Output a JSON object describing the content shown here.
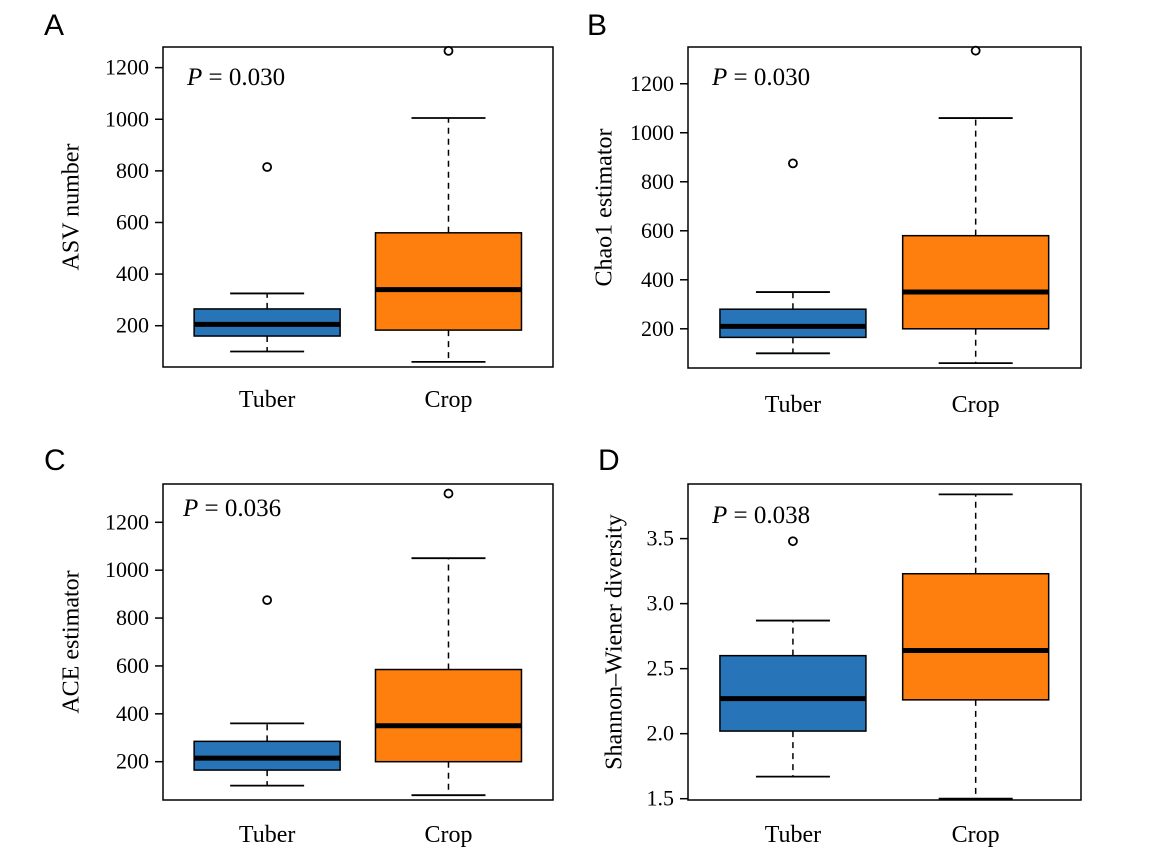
{
  "chart_data": [
    {
      "type": "box",
      "panel": "A",
      "ylabel": "ASV number",
      "annotation_label": "P",
      "annotation_value": " = 0.030",
      "categories": [
        "Tuber",
        "Crop"
      ],
      "yticks": [
        200,
        400,
        600,
        800,
        1000,
        1200
      ],
      "ylim": [
        40,
        1280
      ],
      "boxes": [
        {
          "category": "Tuber",
          "color": "#2874b8",
          "whisker_low": 100,
          "q1": 160,
          "median": 205,
          "q3": 265,
          "whisker_high": 325,
          "outliers": [
            815
          ]
        },
        {
          "category": "Crop",
          "color": "#ff7f0e",
          "whisker_low": 60,
          "q1": 183,
          "median": 340,
          "q3": 560,
          "whisker_high": 1005,
          "outliers": [
            1265
          ]
        }
      ]
    },
    {
      "type": "box",
      "panel": "B",
      "ylabel": "Chao1 estimator",
      "annotation_label": "P",
      "annotation_value": " = 0.030",
      "categories": [
        "Tuber",
        "Crop"
      ],
      "yticks": [
        200,
        400,
        600,
        800,
        1000,
        1200
      ],
      "ylim": [
        40,
        1350
      ],
      "boxes": [
        {
          "category": "Tuber",
          "color": "#2874b8",
          "whisker_low": 100,
          "q1": 165,
          "median": 210,
          "q3": 280,
          "whisker_high": 350,
          "outliers": [
            875
          ]
        },
        {
          "category": "Crop",
          "color": "#ff7f0e",
          "whisker_low": 60,
          "q1": 200,
          "median": 350,
          "q3": 580,
          "whisker_high": 1060,
          "outliers": [
            1335
          ]
        }
      ]
    },
    {
      "type": "box",
      "panel": "C",
      "ylabel": "ACE estimator",
      "annotation_label": "P",
      "annotation_value": " = 0.036",
      "categories": [
        "Tuber",
        "Crop"
      ],
      "yticks": [
        200,
        400,
        600,
        800,
        1000,
        1200
      ],
      "ylim": [
        40,
        1360
      ],
      "boxes": [
        {
          "category": "Tuber",
          "color": "#2874b8",
          "whisker_low": 100,
          "q1": 165,
          "median": 215,
          "q3": 285,
          "whisker_high": 360,
          "outliers": [
            875
          ]
        },
        {
          "category": "Crop",
          "color": "#ff7f0e",
          "whisker_low": 60,
          "q1": 200,
          "median": 350,
          "q3": 585,
          "whisker_high": 1050,
          "outliers": [
            1320
          ]
        }
      ]
    },
    {
      "type": "box",
      "panel": "D",
      "ylabel": "Shannon–Wiener diversity",
      "annotation_label": "P",
      "annotation_value": " = 0.038",
      "categories": [
        "Tuber",
        "Crop"
      ],
      "yticks": [
        "1.5",
        "2.0",
        "2.5",
        "3.0",
        "3.5"
      ],
      "ylim": [
        1.49,
        3.92
      ],
      "boxes": [
        {
          "category": "Tuber",
          "color": "#2874b8",
          "whisker_low": 1.67,
          "q1": 2.02,
          "median": 2.27,
          "q3": 2.6,
          "whisker_high": 2.87,
          "outliers": [
            3.48
          ]
        },
        {
          "category": "Crop",
          "color": "#ff7f0e",
          "whisker_low": 1.5,
          "q1": 2.26,
          "median": 2.64,
          "q3": 3.23,
          "whisker_high": 3.84,
          "outliers": []
        }
      ]
    }
  ]
}
